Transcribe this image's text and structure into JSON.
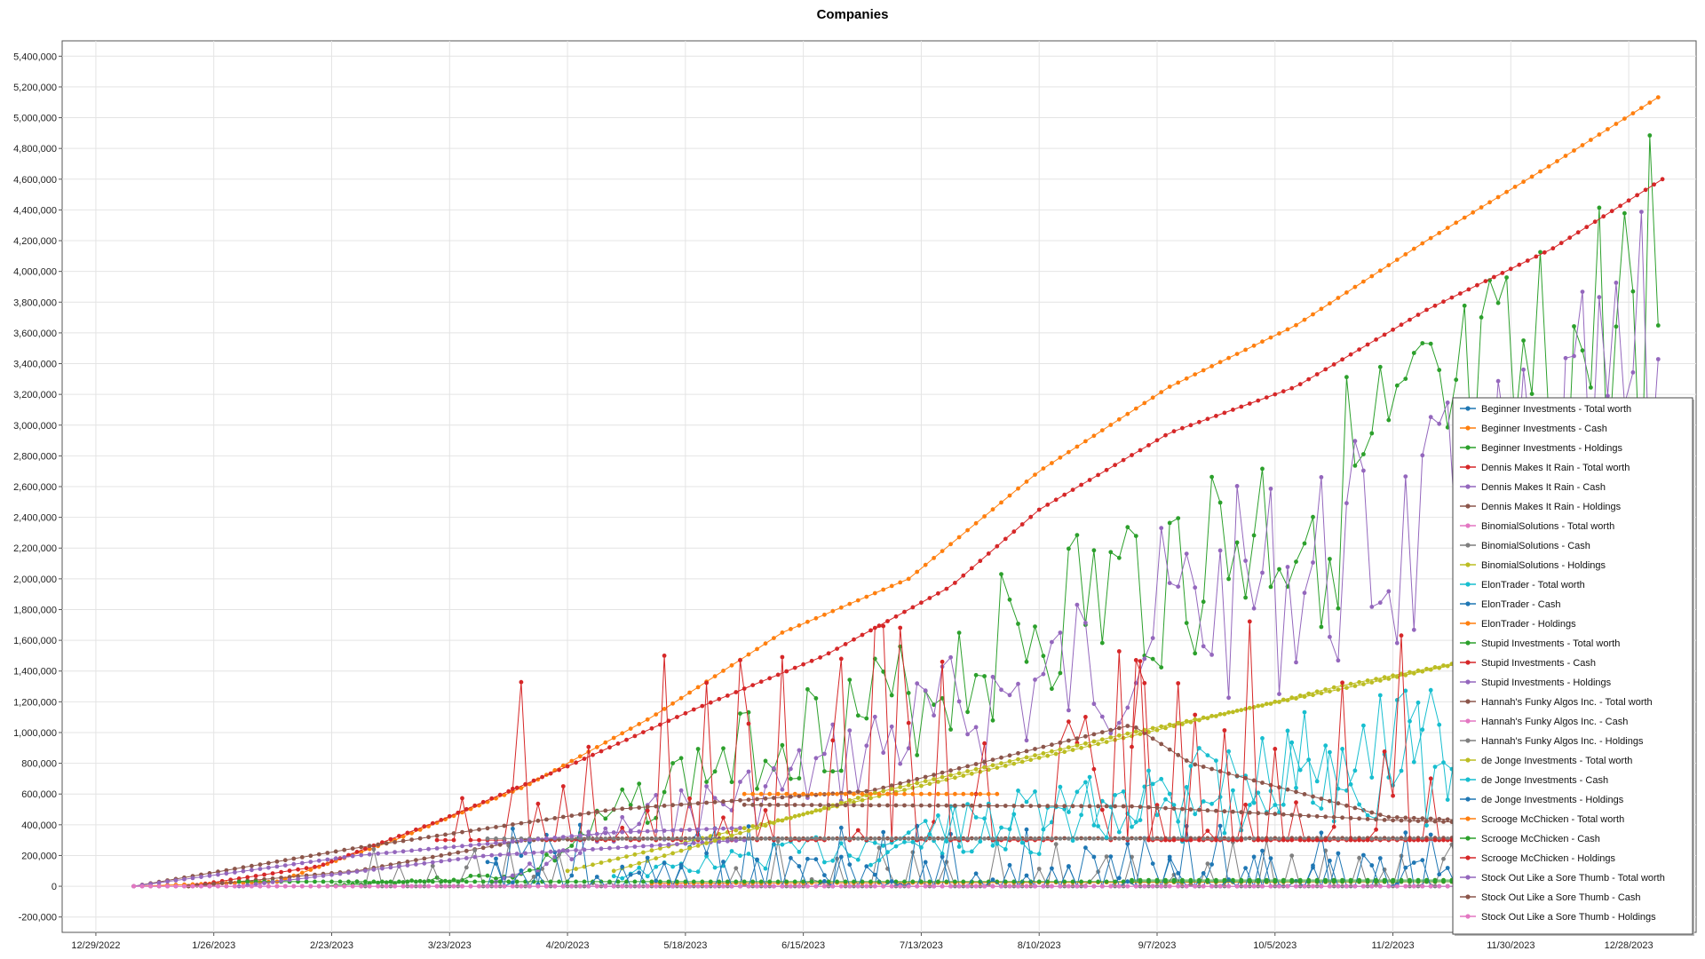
{
  "chart_data": {
    "type": "line",
    "title": "Companies",
    "xlabel": "",
    "ylabel": "",
    "x_ticks": [
      "12/29/2022",
      "1/26/2023",
      "2/23/2023",
      "3/23/2023",
      "4/20/2023",
      "5/18/2023",
      "6/15/2023",
      "7/13/2023",
      "8/10/2023",
      "9/7/2023",
      "10/5/2023",
      "11/2/2023",
      "11/30/2023",
      "12/28/2023"
    ],
    "y_ticks": [
      "-200,000",
      "0",
      "200,000",
      "400,000",
      "600,000",
      "800,000",
      "1,000,000",
      "1,200,000",
      "1,400,000",
      "1,600,000",
      "1,800,000",
      "2,000,000",
      "2,200,000",
      "2,400,000",
      "2,600,000",
      "2,800,000",
      "3,000,000",
      "3,200,000",
      "3,400,000",
      "3,600,000",
      "3,800,000",
      "4,000,000",
      "4,200,000",
      "4,400,000",
      "4,600,000",
      "4,800,000",
      "5,000,000",
      "5,200,000",
      "5,400,000"
    ],
    "xlim": [
      "2022-12-21",
      "2024-01-13"
    ],
    "ylim": [
      -300000,
      5500000
    ],
    "grid": true,
    "legend_position": "bottom-right",
    "series": [
      {
        "name": "Beginner Investments - Total worth",
        "color": "#1f77b4",
        "kind": "flat",
        "start": "2023-01-07",
        "end": "2024-01-05",
        "level": 0
      },
      {
        "name": "Beginner Investments - Cash",
        "color": "#ff7f0e",
        "kind": "curve",
        "start": "2023-01-07",
        "end": "2024-01-05",
        "anchors": [
          [
            "2023-01-07",
            0
          ],
          [
            "2023-02-10",
            30000
          ],
          [
            "2023-03-10",
            300000
          ],
          [
            "2023-04-10",
            650000
          ],
          [
            "2023-05-10",
            1100000
          ],
          [
            "2023-06-10",
            1650000
          ],
          [
            "2023-07-10",
            2000000
          ],
          [
            "2023-08-10",
            2700000
          ],
          [
            "2023-09-10",
            3250000
          ],
          [
            "2023-10-10",
            3650000
          ],
          [
            "2023-11-10",
            4200000
          ],
          [
            "2023-12-10",
            4700000
          ],
          [
            "2024-01-05",
            5150000
          ]
        ]
      },
      {
        "name": "Beginner Investments - Holdings",
        "color": "#2ca02c",
        "kind": "osc",
        "start": "2023-02-20",
        "end": "2024-01-05",
        "seed": 3,
        "anchors": [
          [
            "2023-02-20",
            0
          ],
          [
            "2023-04-10",
            100000
          ],
          [
            "2023-05-10",
            800000
          ],
          [
            "2023-06-10",
            1300000
          ],
          [
            "2023-07-10",
            1600000
          ],
          [
            "2023-08-10",
            2300000
          ],
          [
            "2023-09-10",
            2700000
          ],
          [
            "2023-10-10",
            3200000
          ],
          [
            "2023-11-10",
            3700000
          ],
          [
            "2023-12-10",
            4200000
          ],
          [
            "2024-01-05",
            5140000
          ]
        ],
        "amp": 0.5
      },
      {
        "name": "Dennis Makes It Rain - Total worth",
        "color": "#d62728",
        "kind": "curve",
        "start": "2023-01-20",
        "end": "2024-01-05",
        "anchors": [
          [
            "2023-01-20",
            0
          ],
          [
            "2023-02-20",
            130000
          ],
          [
            "2023-03-20",
            420000
          ],
          [
            "2023-04-20",
            780000
          ],
          [
            "2023-05-20",
            1150000
          ],
          [
            "2023-06-20",
            1500000
          ],
          [
            "2023-07-20",
            1950000
          ],
          [
            "2023-08-10",
            2450000
          ],
          [
            "2023-09-10",
            2950000
          ],
          [
            "2023-10-10",
            3250000
          ],
          [
            "2023-11-10",
            3750000
          ],
          [
            "2023-12-10",
            4150000
          ],
          [
            "2024-01-05",
            4600000
          ]
        ]
      },
      {
        "name": "Dennis Makes It Rain - Cash",
        "color": "#9467bd",
        "kind": "osc",
        "start": "2023-04-01",
        "end": "2024-01-05",
        "seed": 7,
        "anchors": [
          [
            "2023-04-01",
            0
          ],
          [
            "2023-05-10",
            600000
          ],
          [
            "2023-06-10",
            900000
          ],
          [
            "2023-07-10",
            1400000
          ],
          [
            "2023-08-10",
            1800000
          ],
          [
            "2023-09-10",
            2400000
          ],
          [
            "2023-10-10",
            2800000
          ],
          [
            "2023-11-10",
            3100000
          ],
          [
            "2023-12-10",
            3600000
          ],
          [
            "2024-01-05",
            4600000
          ]
        ],
        "amp": 0.55
      },
      {
        "name": "Dennis Makes It Rain - Holdings",
        "color": "#8c564b",
        "kind": "curve",
        "start": "2023-01-20",
        "end": "2024-01-05",
        "anchors": [
          [
            "2023-01-20",
            0
          ],
          [
            "2023-03-01",
            100000
          ],
          [
            "2023-04-10",
            300000
          ],
          [
            "2023-05-01",
            310000
          ],
          [
            "2024-01-05",
            315000
          ]
        ]
      },
      {
        "name": "BinomialSolutions - Total worth",
        "color": "#e377c2",
        "kind": "curve",
        "start": "2023-01-07",
        "end": "2024-01-05",
        "anchors": [
          [
            "2023-01-07",
            0
          ],
          [
            "2024-01-05",
            0
          ]
        ]
      },
      {
        "name": "BinomialSolutions - Cash",
        "color": "#7f7f7f",
        "kind": "osc",
        "start": "2023-03-01",
        "end": "2024-01-05",
        "seed": 11,
        "anchors": [
          [
            "2023-03-01",
            0
          ],
          [
            "2024-01-05",
            0
          ]
        ],
        "amp": 0.0,
        "spike": 300000
      },
      {
        "name": "BinomialSolutions - Holdings",
        "color": "#bcbd22",
        "kind": "curve",
        "start": "2023-04-20",
        "end": "2023-12-05",
        "anchors": [
          [
            "2023-04-20",
            100000
          ],
          [
            "2023-05-20",
            300000
          ],
          [
            "2023-06-20",
            500000
          ],
          [
            "2023-07-20",
            700000
          ],
          [
            "2023-08-20",
            900000
          ],
          [
            "2023-09-20",
            1100000
          ],
          [
            "2023-10-20",
            1300000
          ],
          [
            "2023-12-05",
            1550000
          ]
        ]
      },
      {
        "name": "ElonTrader - Total worth",
        "color": "#17becf",
        "kind": "osc",
        "start": "2023-05-01",
        "end": "2023-12-05",
        "seed": 13,
        "anchors": [
          [
            "2023-05-01",
            100000
          ],
          [
            "2023-07-01",
            400000
          ],
          [
            "2023-09-01",
            800000
          ],
          [
            "2023-11-01",
            1300000
          ],
          [
            "2023-12-05",
            1500000
          ]
        ],
        "amp": 0.6
      },
      {
        "name": "ElonTrader - Cash",
        "color": "#1f77b4",
        "kind": "osc",
        "start": "2023-04-01",
        "end": "2024-01-05",
        "seed": 17,
        "anchors": [
          [
            "2023-04-01",
            0
          ],
          [
            "2024-01-05",
            0
          ]
        ],
        "amp": 0.0,
        "spike": 400000
      },
      {
        "name": "ElonTrader - Holdings",
        "color": "#ff7f0e",
        "kind": "curve",
        "start": "2023-05-10",
        "end": "2023-12-05",
        "anchors": [
          [
            "2023-05-10",
            20000
          ],
          [
            "2023-12-05",
            30000
          ]
        ]
      },
      {
        "name": "Stupid Investments - Total worth",
        "color": "#2ca02c",
        "kind": "flat",
        "start": "2023-02-01",
        "end": "2024-01-05",
        "level": 30000
      },
      {
        "name": "Stupid Investments - Cash",
        "color": "#d62728",
        "kind": "osc",
        "start": "2023-03-20",
        "end": "2024-01-05",
        "seed": 19,
        "anchors": [
          [
            "2023-03-20",
            300000
          ],
          [
            "2024-01-05",
            300000
          ]
        ],
        "amp": 0.0,
        "spike": 1400000
      },
      {
        "name": "Stupid Investments - Holdings",
        "color": "#9467bd",
        "kind": "curve",
        "start": "2023-02-01",
        "end": "2023-06-01",
        "anchors": [
          [
            "2023-02-01",
            0
          ],
          [
            "2023-04-01",
            200000
          ],
          [
            "2023-06-01",
            300000
          ]
        ]
      },
      {
        "name": "Hannah's Funky Algos Inc. - Total worth",
        "color": "#8c564b",
        "kind": "curve",
        "start": "2023-01-07",
        "end": "2024-01-05",
        "anchors": [
          [
            "2023-01-07",
            0
          ],
          [
            "2023-03-01",
            250000
          ],
          [
            "2023-05-01",
            500000
          ],
          [
            "2023-07-01",
            620000
          ],
          [
            "2023-08-10",
            900000
          ],
          [
            "2023-09-01",
            1050000
          ],
          [
            "2023-09-15",
            800000
          ],
          [
            "2023-11-01",
            450000
          ],
          [
            "2024-01-05",
            380000
          ]
        ]
      },
      {
        "name": "Hannah's Funky Algos Inc. - Cash",
        "color": "#e377c2",
        "kind": "flat",
        "start": "2023-01-07",
        "end": "2024-01-05",
        "level": 0
      },
      {
        "name": "Hannah's Funky Algos Inc. - Holdings",
        "color": "#7f7f7f",
        "kind": "flat",
        "start": "2023-04-01",
        "end": "2024-01-05",
        "level": 310000
      },
      {
        "name": "de Jonge Investments - Total worth",
        "color": "#bcbd22",
        "kind": "curve",
        "start": "2023-05-01",
        "end": "2023-12-05",
        "anchors": [
          [
            "2023-05-01",
            100000
          ],
          [
            "2023-07-01",
            600000
          ],
          [
            "2023-09-01",
            1000000
          ],
          [
            "2023-10-15",
            1250000
          ],
          [
            "2023-12-05",
            1550000
          ]
        ]
      },
      {
        "name": "de Jonge Investments - Cash",
        "color": "#17becf",
        "kind": "osc",
        "start": "2023-07-01",
        "end": "2023-12-05",
        "seed": 23,
        "anchors": [
          [
            "2023-07-01",
            400000
          ],
          [
            "2023-09-01",
            800000
          ],
          [
            "2023-11-01",
            1200000
          ],
          [
            "2023-12-05",
            1500000
          ]
        ],
        "amp": 0.7
      },
      {
        "name": "de Jonge Investments - Holdings",
        "color": "#1f77b4",
        "kind": "osc",
        "start": "2023-04-01",
        "end": "2024-01-05",
        "seed": 29,
        "anchors": [
          [
            "2023-04-01",
            0
          ],
          [
            "2024-01-05",
            0
          ]
        ],
        "amp": 0.0,
        "spike": 200000
      },
      {
        "name": "Scrooge McChicken - Total worth",
        "color": "#ff7f0e",
        "kind": "flat",
        "start": "2023-06-01",
        "end": "2023-08-01",
        "level": 600000
      },
      {
        "name": "Scrooge McChicken - Cash",
        "color": "#2ca02c",
        "kind": "flat",
        "start": "2023-09-01",
        "end": "2024-01-05",
        "level": 40000
      },
      {
        "name": "Scrooge McChicken - Holdings",
        "color": "#d62728",
        "kind": "osc",
        "start": "2023-09-01",
        "end": "2024-01-05",
        "seed": 31,
        "anchors": [
          [
            "2023-09-01",
            300000
          ],
          [
            "2024-01-05",
            300000
          ]
        ],
        "amp": 0.0,
        "spike": 1500000
      },
      {
        "name": "Stock Out Like a Sore Thumb - Total worth",
        "color": "#9467bd",
        "kind": "curve",
        "start": "2023-01-07",
        "end": "2023-06-01",
        "anchors": [
          [
            "2023-01-07",
            0
          ],
          [
            "2023-03-01",
            200000
          ],
          [
            "2023-05-01",
            350000
          ],
          [
            "2023-06-01",
            380000
          ]
        ]
      },
      {
        "name": "Stock Out Like a Sore Thumb - Cash",
        "color": "#8c564b",
        "kind": "curve",
        "start": "2023-06-01",
        "end": "2024-01-05",
        "anchors": [
          [
            "2023-06-01",
            530000
          ],
          [
            "2023-09-01",
            520000
          ],
          [
            "2023-11-01",
            430000
          ],
          [
            "2024-01-05",
            380000
          ]
        ]
      },
      {
        "name": "Stock Out Like a Sore Thumb - Holdings",
        "color": "#e377c2",
        "kind": "flat",
        "start": "2023-01-07",
        "end": "2024-01-05",
        "level": 0
      }
    ]
  }
}
